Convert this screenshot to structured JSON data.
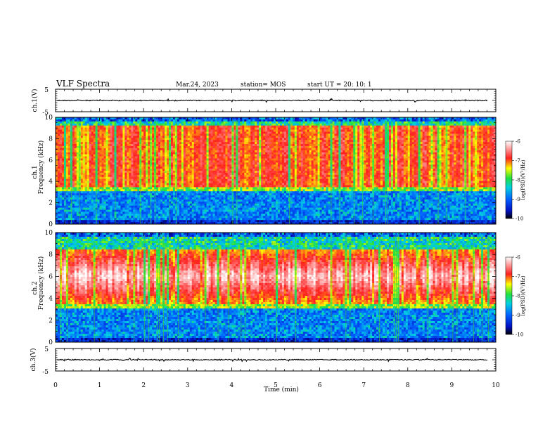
{
  "header": {
    "title": "VLF Spectra",
    "date": "Mar.24, 2023",
    "station": "station= MOS",
    "start": "start  UT =   20: 10: 1"
  },
  "colors": {
    "cmap": [
      "#000000",
      "#1020ff",
      "#00a0ff",
      "#00e8d0",
      "#30e030",
      "#ffff00",
      "#ff2020",
      "#ffffff"
    ]
  },
  "chart_data": [
    {
      "type": "line",
      "name": "ch1-waveform",
      "ylabel": "ch.1(V)",
      "ylim": [
        -5,
        5
      ],
      "ytick_labels": [
        "5",
        "-5"
      ],
      "description_values": {
        "baseline": 0
      }
    },
    {
      "type": "heatmap",
      "name": "ch1-spectrogram",
      "ylabel_line1": "ch.1",
      "ylabel_line2": "Frequency (kHz)",
      "ylim": [
        0,
        10
      ],
      "ytick_labels": [
        "0",
        "2",
        "4",
        "6",
        "8",
        "10"
      ],
      "xlim": [
        0,
        10
      ],
      "band_high_kHz": [
        3.5,
        9.2
      ],
      "band_low_kHz": [
        0,
        3.3
      ],
      "colorbar": {
        "label": "log(PSD)(V²/Hz)",
        "range": [
          -10,
          -6
        ],
        "tick_labels": [
          "-6",
          "-7",
          "-8",
          "-9",
          "-10"
        ]
      }
    },
    {
      "type": "heatmap",
      "name": "ch2-spectrogram",
      "ylabel_line1": "ch.2",
      "ylabel_line2": "Frequency (kHz)",
      "ylim": [
        0,
        10
      ],
      "ytick_labels": [
        "0",
        "2",
        "4",
        "6",
        "8",
        "10"
      ],
      "xlim": [
        0,
        10
      ],
      "band_high_kHz": [
        3.5,
        8.5
      ],
      "band_low_kHz": [
        0,
        3.3
      ],
      "colorbar": {
        "label": "log(PSD)(V²/Hz)",
        "range": [
          -10,
          -6
        ],
        "tick_labels": [
          "-6",
          "-7",
          "-8",
          "-9",
          "-10"
        ]
      }
    },
    {
      "type": "line",
      "name": "ch3-waveform",
      "ylabel": "ch.3(V)",
      "ylim": [
        -5,
        5
      ],
      "ytick_labels": [
        "5",
        "-5"
      ],
      "xlabel": "Time  (min)",
      "xlim": [
        0,
        10
      ],
      "xtick_labels": [
        "0",
        "1",
        "2",
        "3",
        "4",
        "5",
        "6",
        "7",
        "8",
        "9",
        "10"
      ]
    }
  ]
}
